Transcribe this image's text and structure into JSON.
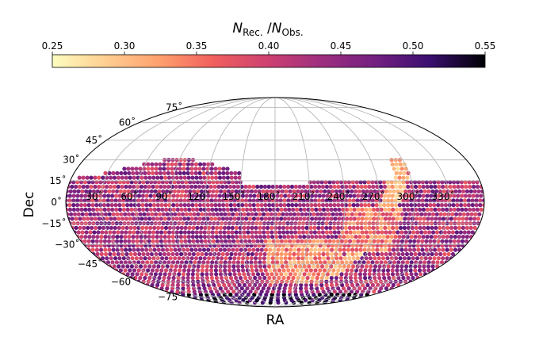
{
  "chart_data": {
    "type": "scatter",
    "projection": "mollweide",
    "xlabel": "RA",
    "ylabel": "Dec",
    "colorbar": {
      "label_main": "N",
      "label_sub1": "Rec.",
      "label_sep": " /",
      "label_main2": "N",
      "label_sub2": "Obs.",
      "range": [
        0.25,
        0.55
      ],
      "ticks": [
        "0.25",
        "0.30",
        "0.35",
        "0.40",
        "0.45",
        "0.50",
        "0.55"
      ],
      "colormap": "magma_r",
      "placement": "top"
    },
    "ra_ticks": [
      "30˚",
      "60˚",
      "90˚",
      "120˚",
      "150˚",
      "180˚",
      "210˚",
      "240˚",
      "270˚",
      "300˚",
      "330˚"
    ],
    "dec_ticks": [
      "75˚",
      "60˚",
      "45˚",
      "30˚",
      "15˚",
      "0˚",
      "−15˚",
      "−30˚",
      "−45˚",
      "−60˚",
      "−75˚"
    ],
    "grid": true,
    "footprint": "Dec from −80˚ to about +30˚ (Galactic plane masked); ratio mostly 0.40–0.50, lower (~0.25–0.33) along the Galactic plane band near RA ≈ 270˚–300˚ and in the southern RA ≈ 150˚–240˚ region, higher (~0.50–0.55) near Dec ≈ −75˚"
  }
}
